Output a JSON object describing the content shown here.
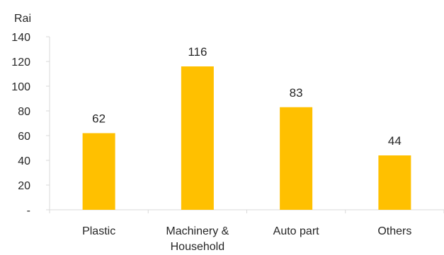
{
  "chart_data": {
    "type": "bar",
    "ylabel": "Rai",
    "categories": [
      [
        "Plastic"
      ],
      [
        "Machinery &",
        "Household"
      ],
      [
        "Auto part"
      ],
      [
        "Others"
      ]
    ],
    "values": [
      62,
      116,
      83,
      44
    ],
    "data_labels": [
      "62",
      "116",
      "83",
      "44"
    ],
    "ylim": [
      0,
      140
    ],
    "yticks": [
      0,
      20,
      40,
      60,
      80,
      100,
      120,
      140
    ],
    "ytick_labels": [
      "-",
      "20",
      "40",
      "60",
      "80",
      "100",
      "120",
      "140"
    ],
    "grid": false,
    "legend": "none",
    "bar_color": "#FFC000",
    "axis_color": "#D9D9D9",
    "text_color": "#262626"
  }
}
